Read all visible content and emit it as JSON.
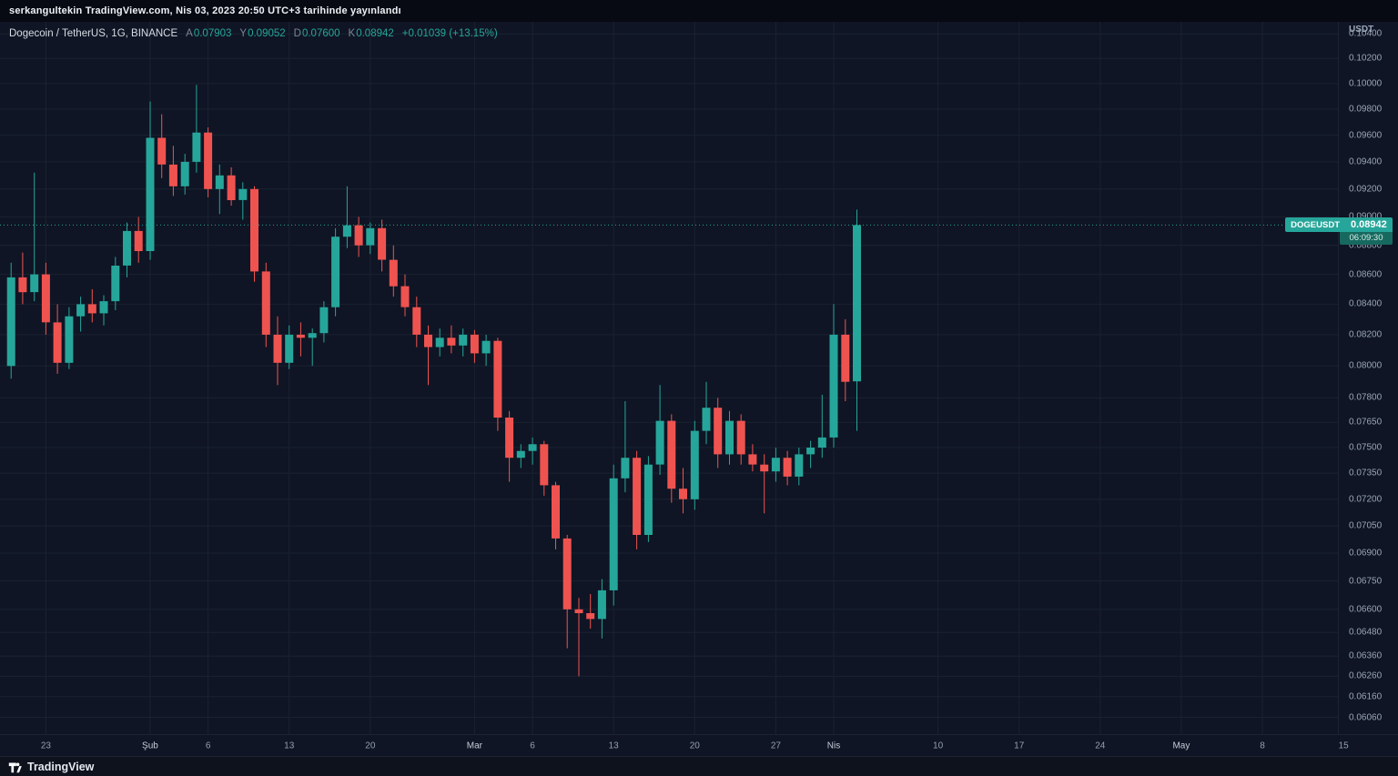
{
  "top_bar": {
    "text": "serkangultekin TradingView.com, Nis 03, 2023 20:50 UTC+3 tarihinde yayınlandı"
  },
  "legend": {
    "title": "Dogecoin / TetherUS, 1G, BINANCE",
    "a_label": "A",
    "a": "0.07903",
    "y_label": "Y",
    "y": "0.09052",
    "d_label": "D",
    "d": "0.07600",
    "k_label": "K",
    "k": "0.08942",
    "change": "+0.01039 (+13.15%)"
  },
  "price_scale": {
    "unit": "USDT",
    "labels": [
      "0.10400",
      "0.10200",
      "0.10000",
      "0.09800",
      "0.09600",
      "0.09400",
      "0.09200",
      "0.09000",
      "0.08800",
      "0.08600",
      "0.08400",
      "0.08200",
      "0.08000",
      "0.07800",
      "0.07650",
      "0.07500",
      "0.07350",
      "0.07200",
      "0.07050",
      "0.06900",
      "0.06750",
      "0.06600",
      "0.06480",
      "0.06360",
      "0.06260",
      "0.06160",
      "0.06060"
    ],
    "price_tag": {
      "symbol": "DOGEUSDT",
      "price": "0.08942",
      "countdown": "06:09:30"
    }
  },
  "time_scale": {
    "labels": [
      {
        "text": "23",
        "i": 3
      },
      {
        "text": "Şub",
        "i": 12,
        "month": true
      },
      {
        "text": "6",
        "i": 17
      },
      {
        "text": "13",
        "i": 24
      },
      {
        "text": "20",
        "i": 31
      },
      {
        "text": "Mar",
        "i": 40,
        "month": true
      },
      {
        "text": "6",
        "i": 45
      },
      {
        "text": "13",
        "i": 52
      },
      {
        "text": "20",
        "i": 59
      },
      {
        "text": "27",
        "i": 66
      },
      {
        "text": "Nis",
        "i": 71,
        "month": true
      },
      {
        "text": "10",
        "i": 80
      },
      {
        "text": "17",
        "i": 87
      },
      {
        "text": "24",
        "i": 94
      },
      {
        "text": "May",
        "i": 101,
        "month": true
      },
      {
        "text": "8",
        "i": 108
      },
      {
        "text": "15",
        "i": 115
      }
    ]
  },
  "footer": {
    "logo_text": "TradingView"
  },
  "colors": {
    "up": "#26a69a",
    "down": "#ef5350",
    "price_line": "#26a69a",
    "background": "#0f1524",
    "grid": "#1a2130",
    "tag_bg": "#26a69a",
    "tag_countdown_bg": "#17695f"
  },
  "chart_data": {
    "type": "candlestick",
    "title": "Dogecoin / TetherUS, 1G, BINANCE",
    "symbol": "DOGEUSDT",
    "exchange": "BINANCE",
    "interval": "1G",
    "ylabel": "USDT",
    "scale": "log",
    "grid": true,
    "current_price": 0.08942,
    "last_bar": {
      "open": 0.07903,
      "high": 0.09052,
      "low": 0.076,
      "close": 0.08942,
      "change": "+0.01039 (+13.15%)"
    },
    "axis": {
      "price_top": 0.105,
      "price_bottom": 0.0598,
      "x0": 12.2,
      "step": 12.73
    },
    "columns": [
      "date",
      "open",
      "high",
      "low",
      "close"
    ],
    "candles": [
      [
        "2023-01-20",
        0.08,
        0.0868,
        0.0792,
        0.0858
      ],
      [
        "2023-01-21",
        0.0858,
        0.0875,
        0.084,
        0.0848
      ],
      [
        "2023-01-22",
        0.0848,
        0.0932,
        0.0842,
        0.086
      ],
      [
        "2023-01-23",
        0.086,
        0.0868,
        0.082,
        0.0828
      ],
      [
        "2023-01-24",
        0.0828,
        0.084,
        0.0795,
        0.0802
      ],
      [
        "2023-01-25",
        0.0802,
        0.0838,
        0.0798,
        0.0832
      ],
      [
        "2023-01-26",
        0.0832,
        0.0845,
        0.0822,
        0.084
      ],
      [
        "2023-01-27",
        0.084,
        0.085,
        0.0828,
        0.0834
      ],
      [
        "2023-01-28",
        0.0834,
        0.0846,
        0.0826,
        0.0842
      ],
      [
        "2023-01-29",
        0.0842,
        0.0872,
        0.0836,
        0.0866
      ],
      [
        "2023-01-30",
        0.0866,
        0.0896,
        0.0858,
        0.089
      ],
      [
        "2023-01-31",
        0.089,
        0.09,
        0.0868,
        0.0876
      ],
      [
        "2023-02-01",
        0.0876,
        0.0986,
        0.087,
        0.0958
      ],
      [
        "2023-02-02",
        0.0958,
        0.0976,
        0.0928,
        0.0938
      ],
      [
        "2023-02-03",
        0.0938,
        0.0952,
        0.0915,
        0.0922
      ],
      [
        "2023-02-04",
        0.0922,
        0.0946,
        0.0916,
        0.094
      ],
      [
        "2023-02-05",
        0.094,
        0.0999,
        0.0932,
        0.0962
      ],
      [
        "2023-02-06",
        0.0962,
        0.0966,
        0.0914,
        0.092
      ],
      [
        "2023-02-07",
        0.092,
        0.0938,
        0.0902,
        0.093
      ],
      [
        "2023-02-08",
        0.093,
        0.0936,
        0.0908,
        0.0912
      ],
      [
        "2023-02-09",
        0.0912,
        0.0925,
        0.0898,
        0.092
      ],
      [
        "2023-02-10",
        0.092,
        0.0922,
        0.0855,
        0.0862
      ],
      [
        "2023-02-11",
        0.0862,
        0.0868,
        0.0812,
        0.082
      ],
      [
        "2023-02-12",
        0.082,
        0.0832,
        0.0788,
        0.0802
      ],
      [
        "2023-02-13",
        0.0802,
        0.0826,
        0.0798,
        0.082
      ],
      [
        "2023-02-14",
        0.082,
        0.0828,
        0.0806,
        0.0818
      ],
      [
        "2023-02-15",
        0.0818,
        0.0824,
        0.08,
        0.0821
      ],
      [
        "2023-02-16",
        0.0821,
        0.0842,
        0.0815,
        0.0838
      ],
      [
        "2023-02-17",
        0.0838,
        0.0892,
        0.0832,
        0.0886
      ],
      [
        "2023-02-18",
        0.0886,
        0.0922,
        0.0878,
        0.0894
      ],
      [
        "2023-02-19",
        0.0894,
        0.09,
        0.0872,
        0.088
      ],
      [
        "2023-02-20",
        0.088,
        0.0896,
        0.0874,
        0.0892
      ],
      [
        "2023-02-21",
        0.0892,
        0.0898,
        0.0862,
        0.087
      ],
      [
        "2023-02-22",
        0.087,
        0.088,
        0.0845,
        0.0852
      ],
      [
        "2023-02-23",
        0.0852,
        0.086,
        0.0832,
        0.0838
      ],
      [
        "2023-02-24",
        0.0838,
        0.0845,
        0.0812,
        0.082
      ],
      [
        "2023-02-25",
        0.082,
        0.0826,
        0.0788,
        0.0812
      ],
      [
        "2023-02-26",
        0.0812,
        0.0824,
        0.0806,
        0.0818
      ],
      [
        "2023-02-27",
        0.0818,
        0.0826,
        0.0808,
        0.0813
      ],
      [
        "2023-02-28",
        0.0813,
        0.0824,
        0.0806,
        0.082
      ],
      [
        "2023-03-01",
        0.082,
        0.0823,
        0.0802,
        0.0808
      ],
      [
        "2023-03-02",
        0.0808,
        0.082,
        0.08,
        0.0816
      ],
      [
        "2023-03-03",
        0.0816,
        0.0818,
        0.076,
        0.0768
      ],
      [
        "2023-03-04",
        0.0768,
        0.0772,
        0.073,
        0.0744
      ],
      [
        "2023-03-05",
        0.0744,
        0.0752,
        0.0738,
        0.0748
      ],
      [
        "2023-03-06",
        0.0748,
        0.0756,
        0.074,
        0.0752
      ],
      [
        "2023-03-07",
        0.0752,
        0.0754,
        0.0722,
        0.0728
      ],
      [
        "2023-03-08",
        0.0728,
        0.073,
        0.0692,
        0.0698
      ],
      [
        "2023-03-09",
        0.0698,
        0.07,
        0.064,
        0.066
      ],
      [
        "2023-03-10",
        0.066,
        0.0666,
        0.0626,
        0.0658
      ],
      [
        "2023-03-11",
        0.0658,
        0.0668,
        0.065,
        0.0655
      ],
      [
        "2023-03-12",
        0.0655,
        0.0676,
        0.0645,
        0.067
      ],
      [
        "2023-03-13",
        0.067,
        0.074,
        0.0662,
        0.0732
      ],
      [
        "2023-03-14",
        0.0732,
        0.0778,
        0.0724,
        0.0744
      ],
      [
        "2023-03-15",
        0.0744,
        0.0748,
        0.0692,
        0.07
      ],
      [
        "2023-03-16",
        0.07,
        0.0745,
        0.0696,
        0.074
      ],
      [
        "2023-03-17",
        0.074,
        0.0788,
        0.0734,
        0.0766
      ],
      [
        "2023-03-18",
        0.0766,
        0.077,
        0.0718,
        0.0726
      ],
      [
        "2023-03-19",
        0.0726,
        0.0738,
        0.0712,
        0.072
      ],
      [
        "2023-03-20",
        0.072,
        0.0766,
        0.0714,
        0.076
      ],
      [
        "2023-03-21",
        0.076,
        0.079,
        0.0752,
        0.0774
      ],
      [
        "2023-03-22",
        0.0774,
        0.078,
        0.0738,
        0.0746
      ],
      [
        "2023-03-23",
        0.0746,
        0.0772,
        0.074,
        0.0766
      ],
      [
        "2023-03-24",
        0.0766,
        0.077,
        0.074,
        0.0746
      ],
      [
        "2023-03-25",
        0.0746,
        0.0752,
        0.0736,
        0.074
      ],
      [
        "2023-03-26",
        0.074,
        0.0746,
        0.0712,
        0.0736
      ],
      [
        "2023-03-27",
        0.0736,
        0.075,
        0.073,
        0.0744
      ],
      [
        "2023-03-28",
        0.0744,
        0.0748,
        0.0728,
        0.0733
      ],
      [
        "2023-03-29",
        0.0733,
        0.075,
        0.0728,
        0.0746
      ],
      [
        "2023-03-30",
        0.0746,
        0.0754,
        0.0738,
        0.075
      ],
      [
        "2023-03-31",
        0.075,
        0.0782,
        0.0744,
        0.0756
      ],
      [
        "2023-04-01",
        0.0756,
        0.084,
        0.075,
        0.082
      ],
      [
        "2023-04-02",
        0.082,
        0.083,
        0.0778,
        0.079
      ],
      [
        "2023-04-03",
        0.07903,
        0.09052,
        0.076,
        0.08942
      ]
    ]
  }
}
